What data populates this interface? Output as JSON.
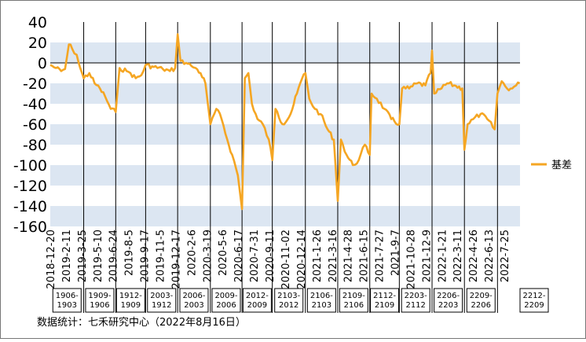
{
  "chart_data": {
    "type": "line",
    "ylim": [
      -160,
      40
    ],
    "yticks": [
      40,
      20,
      0,
      -20,
      -40,
      -60,
      -80,
      -100,
      -120,
      -140,
      -160
    ],
    "grid": "alternating horizontal bands",
    "legend": {
      "position": "right",
      "label": "基差"
    },
    "series": [
      {
        "name": "基差",
        "color": "#f5a623",
        "points": [
          [
            "2018-12-20",
            -2
          ],
          [
            "2019-01-05",
            -5
          ],
          [
            "2019-01-20",
            -8
          ],
          [
            "2019-01-31",
            -6
          ],
          [
            "2019-02-11",
            18
          ],
          [
            "2019-02-20",
            14
          ],
          [
            "2019-03-05",
            8
          ],
          [
            "2019-03-15",
            -5
          ],
          [
            "2019-03-25",
            -15
          ],
          [
            "2019-04-10",
            -10
          ],
          [
            "2019-04-25",
            -20
          ],
          [
            "2019-05-10",
            -25
          ],
          [
            "2019-05-25",
            -33
          ],
          [
            "2019-06-10",
            -45
          ],
          [
            "2019-06-24",
            -48
          ],
          [
            "2019-07-05",
            -5
          ],
          [
            "2019-07-25",
            -8
          ],
          [
            "2019-08-05",
            -10
          ],
          [
            "2019-08-20",
            -15
          ],
          [
            "2019-09-05",
            -12
          ],
          [
            "2019-09-17",
            -2
          ],
          [
            "2019-10-10",
            -4
          ],
          [
            "2019-11-05",
            -6
          ],
          [
            "2019-11-25",
            -8
          ],
          [
            "2019-12-10",
            -5
          ],
          [
            "2019-12-17",
            28
          ],
          [
            "2019-12-25",
            2
          ],
          [
            "2020-01-10",
            0
          ],
          [
            "2020-01-25",
            -3
          ],
          [
            "2020-02-06",
            -5
          ],
          [
            "2020-02-20",
            -10
          ],
          [
            "2020-03-05",
            -20
          ],
          [
            "2020-03-19",
            -60
          ],
          [
            "2020-04-05",
            -45
          ],
          [
            "2020-04-20",
            -55
          ],
          [
            "2020-05-06",
            -75
          ],
          [
            "2020-05-20",
            -90
          ],
          [
            "2020-06-05",
            -110
          ],
          [
            "2020-06-17",
            -143
          ],
          [
            "2020-06-25",
            -15
          ],
          [
            "2020-07-05",
            -10
          ],
          [
            "2020-07-15",
            -40
          ],
          [
            "2020-07-31",
            -55
          ],
          [
            "2020-08-15",
            -60
          ],
          [
            "2020-09-01",
            -75
          ],
          [
            "2020-09-11",
            -95
          ],
          [
            "2020-09-20",
            -45
          ],
          [
            "2020-10-10",
            -60
          ],
          [
            "2020-11-02",
            -50
          ],
          [
            "2020-11-20",
            -30
          ],
          [
            "2020-12-05",
            -15
          ],
          [
            "2020-12-14",
            -10
          ],
          [
            "2020-12-25",
            -35
          ],
          [
            "2021-01-10",
            -45
          ],
          [
            "2021-01-26",
            -50
          ],
          [
            "2021-02-15",
            -65
          ],
          [
            "2021-03-05",
            -75
          ],
          [
            "2021-03-16",
            -135
          ],
          [
            "2021-03-25",
            -75
          ],
          [
            "2021-04-10",
            -90
          ],
          [
            "2021-04-28",
            -100
          ],
          [
            "2021-05-15",
            -95
          ],
          [
            "2021-06-01",
            -80
          ],
          [
            "2021-06-15",
            -90
          ],
          [
            "2021-06-20",
            -30
          ],
          [
            "2021-07-05",
            -35
          ],
          [
            "2021-07-27",
            -45
          ],
          [
            "2021-08-15",
            -55
          ],
          [
            "2021-09-07",
            -60
          ],
          [
            "2021-09-15",
            -25
          ],
          [
            "2021-10-05",
            -25
          ],
          [
            "2021-10-28",
            -20
          ],
          [
            "2021-11-20",
            -22
          ],
          [
            "2021-12-05",
            -10
          ],
          [
            "2021-12-09",
            12
          ],
          [
            "2021-12-15",
            -30
          ],
          [
            "2022-01-05",
            -25
          ],
          [
            "2022-01-21",
            -20
          ],
          [
            "2022-02-10",
            -22
          ],
          [
            "2022-03-05",
            -25
          ],
          [
            "2022-03-11",
            -85
          ],
          [
            "2022-03-20",
            -60
          ],
          [
            "2022-04-05",
            -55
          ],
          [
            "2022-04-26",
            -50
          ],
          [
            "2022-05-15",
            -55
          ],
          [
            "2022-06-05",
            -65
          ],
          [
            "2022-06-13",
            -30
          ],
          [
            "2022-06-25",
            -18
          ],
          [
            "2022-07-10",
            -25
          ],
          [
            "2022-07-25",
            -25
          ],
          [
            "2022-08-05",
            -22
          ],
          [
            "2022-08-15",
            -20
          ]
        ]
      }
    ],
    "x_tick_labels": [
      "2018-12-20",
      "2019-2-11",
      "2019-3-25",
      "2019-5-10",
      "2019-6-24",
      "2019-8-5",
      "2019-9-17",
      "2019-11-5",
      "2019-12-17",
      "2020-2-6",
      "2020-3-19",
      "2020-5-6",
      "2020-6-17",
      "2020-7-31",
      "2020-9-11",
      "2020-11-02",
      "2020-12-14",
      "2021-1-26",
      "2021-3-16",
      "2021-4-28",
      "2021-6-15",
      "2021-7-27",
      "2021-9-7",
      "2021-10-28",
      "2021-12-9",
      "2022-1-21",
      "2022-3-11",
      "2022-4-26",
      "2022-6-13",
      "2022-7-25"
    ],
    "contract_dividers": [
      "2019-03-25",
      "2019-06-24",
      "2019-09-17",
      "2019-12-17",
      "2020-03-19",
      "2020-06-17",
      "2020-09-11",
      "2020-12-14",
      "2021-03-16",
      "2021-06-15",
      "2021-09-07",
      "2021-12-09",
      "2022-03-11",
      "2022-06-13"
    ],
    "contract_labels": [
      {
        "text": "1906-\n1903",
        "from": "2018-12-20",
        "to": "2019-03-25"
      },
      {
        "text": "1909-\n1906",
        "from": "2019-03-25",
        "to": "2019-06-24"
      },
      {
        "text": "1912-\n1909",
        "from": "2019-06-24",
        "to": "2019-09-17"
      },
      {
        "text": "2003-\n1912",
        "from": "2019-09-17",
        "to": "2019-12-17"
      },
      {
        "text": "2006-\n2003",
        "from": "2019-12-17",
        "to": "2020-03-19"
      },
      {
        "text": "2009-\n2006",
        "from": "2020-03-19",
        "to": "2020-06-17"
      },
      {
        "text": "2012-\n2009",
        "from": "2020-06-17",
        "to": "2020-09-11"
      },
      {
        "text": "2103-\n2012",
        "from": "2020-09-11",
        "to": "2020-12-14"
      },
      {
        "text": "2106-\n2103",
        "from": "2020-12-14",
        "to": "2021-03-16"
      },
      {
        "text": "2109-\n2106",
        "from": "2021-03-16",
        "to": "2021-06-15"
      },
      {
        "text": "2112-\n2109",
        "from": "2021-06-15",
        "to": "2021-09-07"
      },
      {
        "text": "2203-\n2112",
        "from": "2021-09-07",
        "to": "2021-12-09"
      },
      {
        "text": "2206-\n2203",
        "from": "2021-12-09",
        "to": "2022-03-11"
      },
      {
        "text": "2209-\n2206",
        "from": "2022-03-11",
        "to": "2022-06-13"
      },
      {
        "text": "2212-\n2209",
        "from": "2022-06-13",
        "to": "2022-08-16"
      }
    ]
  },
  "source": "数据统计：七禾研究中心（2022年8月16日）",
  "colors": {
    "line": "#f5a623",
    "band": "#dce6f2",
    "divider": "#000000"
  }
}
